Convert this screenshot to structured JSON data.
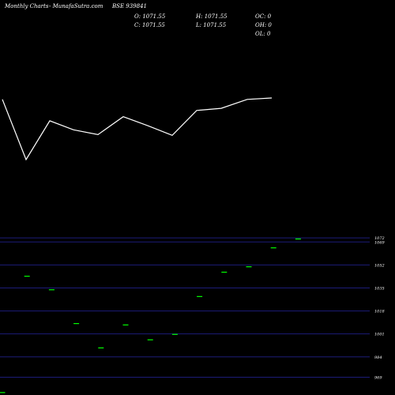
{
  "header": {
    "title": "Monthly Charts",
    "source": "- MunafaSutra.com",
    "symbol": "BSE 939841",
    "o": "O: 1071.55",
    "h": "H: 1071.55",
    "oc": "OC: 0",
    "c": "C: 1071.55",
    "l": "L: 1071.55",
    "oh": "OH: 0",
    "ol": "OL: 0"
  },
  "colors": {
    "background": "#000000",
    "up": "#00ff00",
    "down": "#ff0000",
    "line": "#ffffff",
    "grid": "#1c1c78",
    "text": "#ffffff"
  },
  "chart_data": [
    {
      "type": "line",
      "series": [
        {
          "values": [
            1028,
            941,
            997,
            984,
            977,
            1003,
            990,
            976,
            1012,
            1015,
            1028,
            1030
          ]
        }
      ],
      "grid": false
    },
    {
      "type": "candlestick",
      "ylim": [
        957,
        1075
      ],
      "yticks": [
        1072,
        1069,
        1052,
        1035,
        1018,
        1001,
        984,
        969
      ],
      "ytick_labels": [
        "1072",
        "1069",
        "1052",
        "1035",
        "1018",
        "1001",
        "984",
        "969"
      ],
      "grid": true,
      "candles": [
        {
          "open": 958,
          "high": 958,
          "low": 958,
          "close": 958
        },
        {
          "open": 1044,
          "high": 1044,
          "low": 1044,
          "close": 1044
        },
        {
          "open": 1034,
          "high": 1034,
          "low": 1034,
          "close": 1034
        },
        {
          "open": 1009,
          "high": 1009,
          "low": 1009,
          "close": 1009
        },
        {
          "open": 991,
          "high": 991,
          "low": 991,
          "close": 991
        },
        {
          "open": 1008,
          "high": 1008,
          "low": 1008,
          "close": 1008
        },
        {
          "open": 997,
          "high": 997,
          "low": 997,
          "close": 997
        },
        {
          "open": 1001,
          "high": 1001,
          "low": 1001,
          "close": 1001
        },
        {
          "open": 1029,
          "high": 1029,
          "low": 1029,
          "close": 1029
        },
        {
          "open": 1047,
          "high": 1047,
          "low": 1047,
          "close": 1047
        },
        {
          "open": 1051,
          "high": 1051,
          "low": 1051,
          "close": 1051
        },
        {
          "open": 1065,
          "high": 1065,
          "low": 1065,
          "close": 1065
        },
        {
          "open": 1071.55,
          "high": 1071.55,
          "low": 1071.55,
          "close": 1071.55
        }
      ]
    }
  ]
}
